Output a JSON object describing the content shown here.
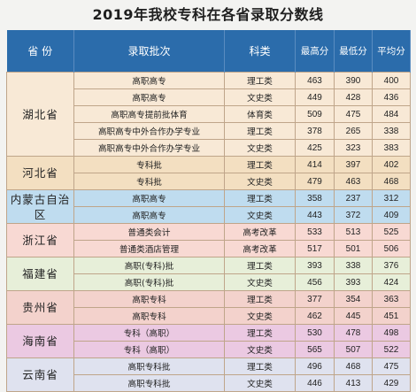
{
  "title": "2019年我校专科在各省录取分数线",
  "headers": {
    "province": "省 份",
    "batch": "录取批次",
    "category": "科类",
    "max": "最高分",
    "min": "最低分",
    "avg": "平均分"
  },
  "colors": {
    "header": "#2b6cab",
    "groups": [
      "#f8e9d6",
      "#f3dfc1",
      "#bfdcef",
      "#f8d9d3",
      "#e7efd9",
      "#f3d2cc",
      "#ebc9e2",
      "#dfe2ef"
    ]
  },
  "groups": [
    {
      "province": "湖北省",
      "rows": [
        {
          "batch": "高职高专",
          "category": "理工类",
          "max": "463",
          "min": "390",
          "avg": "400"
        },
        {
          "batch": "高职高专",
          "category": "文史类",
          "max": "449",
          "min": "428",
          "avg": "436"
        },
        {
          "batch": "高职高专提前批体育",
          "category": "体育类",
          "max": "509",
          "min": "475",
          "avg": "484"
        },
        {
          "batch": "高职高专中外合作办学专业",
          "category": "理工类",
          "max": "378",
          "min": "265",
          "avg": "338"
        },
        {
          "batch": "高职高专中外合作办学专业",
          "category": "文史类",
          "max": "425",
          "min": "323",
          "avg": "383"
        }
      ]
    },
    {
      "province": "河北省",
      "rows": [
        {
          "batch": "专科批",
          "category": "理工类",
          "max": "414",
          "min": "397",
          "avg": "402"
        },
        {
          "batch": "专科批",
          "category": "文史类",
          "max": "479",
          "min": "463",
          "avg": "468"
        }
      ]
    },
    {
      "province": "内蒙古自治区",
      "rows": [
        {
          "batch": "高职高专",
          "category": "理工类",
          "max": "358",
          "min": "237",
          "avg": "312"
        },
        {
          "batch": "高职高专",
          "category": "文史类",
          "max": "443",
          "min": "372",
          "avg": "409"
        }
      ]
    },
    {
      "province": "浙江省",
      "rows": [
        {
          "batch": "普通类会计",
          "category": "高考改革",
          "max": "533",
          "min": "513",
          "avg": "525"
        },
        {
          "batch": "普通类酒店管理",
          "category": "高考改革",
          "max": "517",
          "min": "501",
          "avg": "506"
        }
      ]
    },
    {
      "province": "福建省",
      "rows": [
        {
          "batch": "高职(专科)批",
          "category": "理工类",
          "max": "393",
          "min": "338",
          "avg": "376"
        },
        {
          "batch": "高职(专科)批",
          "category": "文史类",
          "max": "456",
          "min": "393",
          "avg": "424"
        }
      ]
    },
    {
      "province": "贵州省",
      "rows": [
        {
          "batch": "高职专科",
          "category": "理工类",
          "max": "377",
          "min": "354",
          "avg": "363"
        },
        {
          "batch": "高职专科",
          "category": "文史类",
          "max": "462",
          "min": "445",
          "avg": "451"
        }
      ]
    },
    {
      "province": "海南省",
      "rows": [
        {
          "batch": "专科（高职）",
          "category": "理工类",
          "max": "530",
          "min": "478",
          "avg": "498"
        },
        {
          "batch": "专科（高职）",
          "category": "文史类",
          "max": "565",
          "min": "507",
          "avg": "522"
        }
      ]
    },
    {
      "province": "云南省",
      "rows": [
        {
          "batch": "高职专科批",
          "category": "理工类",
          "max": "496",
          "min": "468",
          "avg": "475"
        },
        {
          "batch": "高职专科批",
          "category": "文史类",
          "max": "446",
          "min": "413",
          "avg": "429"
        }
      ]
    }
  ]
}
